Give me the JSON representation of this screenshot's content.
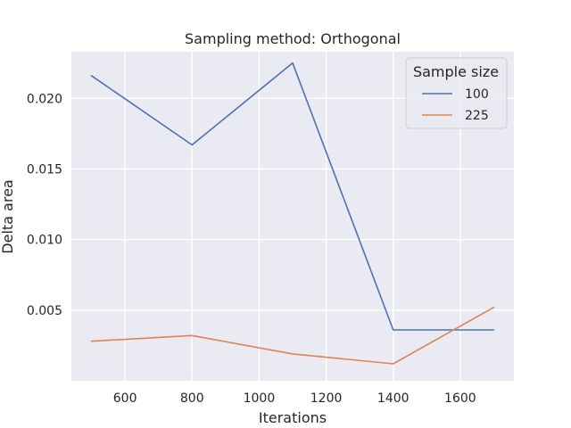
{
  "chart_data": {
    "type": "line",
    "title": "Sampling method: Orthogonal",
    "xlabel": "Iterations",
    "ylabel": "Delta area",
    "xlim": [
      440,
      1760
    ],
    "ylim": [
      0.0,
      0.0233
    ],
    "xticks": [
      600,
      800,
      1000,
      1200,
      1400,
      1600
    ],
    "xtick_labels": [
      "600",
      "800",
      "1000",
      "1200",
      "1400",
      "1600"
    ],
    "yticks": [
      0.005,
      0.01,
      0.015,
      0.02
    ],
    "ytick_labels": [
      "0.005",
      "0.010",
      "0.015",
      "0.020"
    ],
    "grid": true,
    "legend": {
      "title": "Sample size",
      "placement": "top-right"
    },
    "x": [
      500,
      800,
      1100,
      1400,
      1700
    ],
    "series": [
      {
        "name": "100",
        "color": "#4c72b0",
        "values": [
          0.0216,
          0.0167,
          0.0225,
          0.0036,
          0.0036
        ]
      },
      {
        "name": "225",
        "color": "#dd8452",
        "values": [
          0.0028,
          0.0032,
          0.0019,
          0.0012,
          0.0052
        ]
      }
    ]
  },
  "colors": {
    "plot_background": "#eaeaf2",
    "grid": "#ffffff",
    "text": "#262626"
  }
}
